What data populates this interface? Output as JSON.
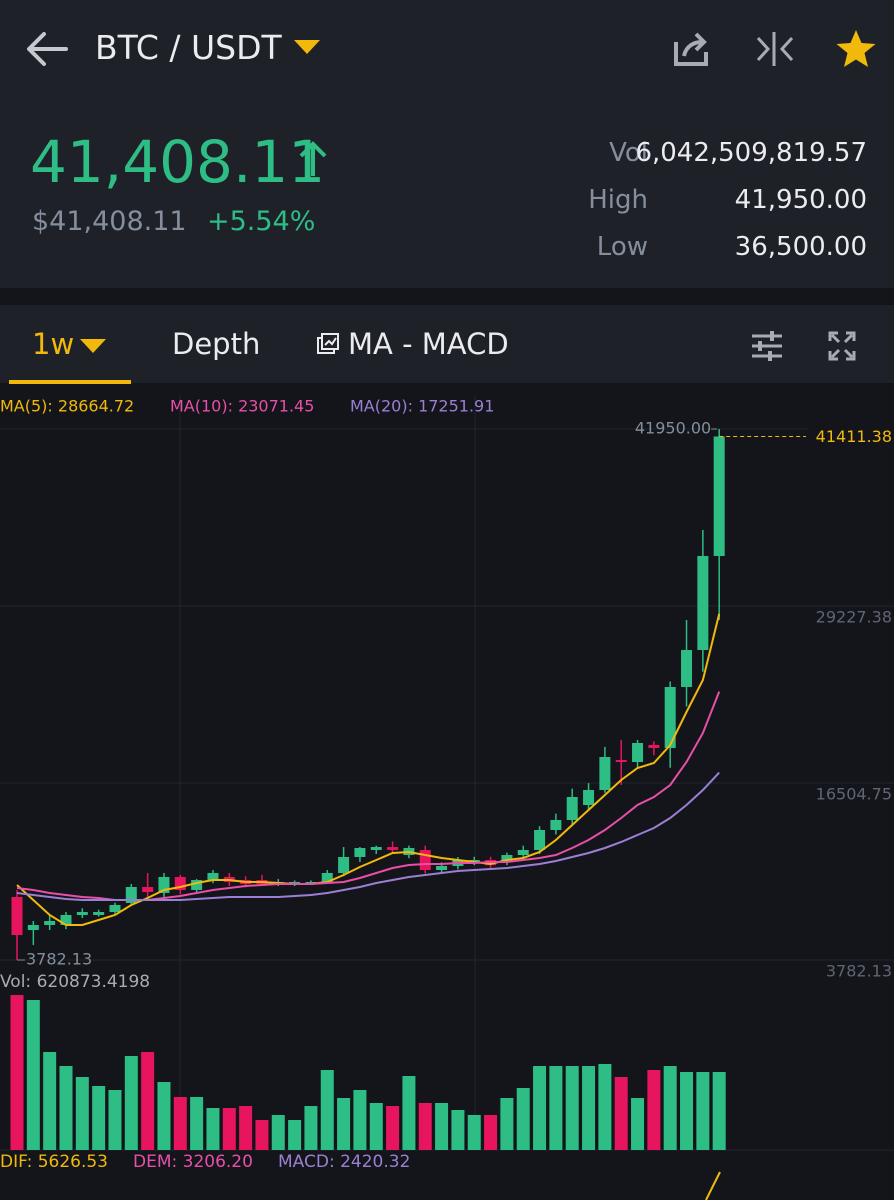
{
  "header": {
    "pair": "BTC / USDT",
    "price": "41,408.11",
    "fiat_price": "$41,408.11",
    "change": "+5.54%",
    "stats": [
      {
        "label": "Vol",
        "value": "6,042,509,819.57"
      },
      {
        "label": "High",
        "value": "41,950.00"
      },
      {
        "label": "Low",
        "value": "36,500.00"
      }
    ]
  },
  "tabs": [
    "1w",
    "Depth",
    "MA - MACD"
  ],
  "chart_data": {
    "type": "candlestick",
    "up_color": "#2ebd85",
    "down_color": "#e6155e",
    "open": [
      8310,
      5938,
      6298,
      6298,
      7017,
      7017,
      7232,
      7879,
      9029,
      8600,
      9748,
      8814,
      9532,
      9748,
      9532,
      9532,
      9245,
      9245,
      9300,
      9389,
      10036,
      11186,
      11689,
      11904,
      11329,
      11689,
      10251,
      10539,
      10826,
      10970,
      10826,
      11329,
      11689,
      13126,
      13845,
      14923,
      16002,
      18158,
      18014,
      19237,
      19021,
      23405,
      26065,
      32822
    ],
    "high": [
      8814,
      6585,
      7017,
      7232,
      7500,
      7400,
      7900,
      9245,
      10036,
      10036,
      9900,
      9600,
      10251,
      10036,
      9800,
      9900,
      9600,
      9500,
      9500,
      10251,
      11900,
      11904,
      12000,
      12300,
      12000,
      12000,
      10800,
      11186,
      11200,
      11200,
      11500,
      12000,
      13400,
      14300,
      16100,
      16500,
      19100,
      19596,
      19600,
      19500,
      23800,
      28221,
      34691,
      41950
    ],
    "low": [
      3782.13,
      4860,
      5938,
      6000,
      6800,
      6900,
      7100,
      7700,
      8239,
      8300,
      8500,
      8600,
      9300,
      9100,
      9000,
      9100,
      9100,
      9100,
      9200,
      9300,
      9800,
      10826,
      11400,
      11500,
      11100,
      10000,
      10000,
      10300,
      10600,
      10400,
      10600,
      11100,
      11400,
      12800,
      13400,
      14500,
      15800,
      16361,
      17600,
      18500,
      17600,
      22000,
      24500,
      28221
    ],
    "close": [
      5579,
      6298,
      6585,
      7017,
      7232,
      7232,
      7735,
      9029,
      8670,
      9748,
      8814,
      9532,
      10036,
      9389,
      9245,
      9245,
      9389,
      9389,
      9389,
      10036,
      11186,
      11833,
      11904,
      11689,
      11833,
      10251,
      10539,
      10970,
      10970,
      10600,
      11329,
      11689,
      13126,
      13845,
      15498,
      16002,
      18374,
      18014,
      19380,
      19021,
      23405,
      26065,
      32822,
      41411.38
    ],
    "series": [
      {
        "label": "MA(5): 28664.72",
        "color": "#f0b90b",
        "values": [
          9173,
          8095,
          7017,
          6298,
          6298,
          6657,
          7017,
          7735,
          8239,
          8814,
          9029,
          9317,
          9532,
          9532,
          9389,
          9389,
          9317,
          9245,
          9245,
          9389,
          9892,
          10467,
          10970,
          11473,
          11545,
          11329,
          11114,
          10970,
          10826,
          10682,
          10970,
          11114,
          11545,
          12408,
          13486,
          14564,
          15642,
          16720,
          17583,
          17942,
          19236,
          21608,
          23908,
          28664.72
        ]
      },
      {
        "label": "MA(10): 23071.45",
        "color": "#e84fa8",
        "values": [
          8957,
          8814,
          8598,
          8454,
          8310,
          8239,
          8095,
          8095,
          8095,
          8239,
          8382,
          8598,
          8814,
          8957,
          9101,
          9173,
          9245,
          9245,
          9245,
          9317,
          9389,
          9676,
          10036,
          10395,
          10611,
          10682,
          10682,
          10754,
          10754,
          10826,
          10826,
          10970,
          11114,
          11329,
          11833,
          12408,
          13126,
          13989,
          14923,
          15498,
          16361,
          18014,
          20099,
          23071.45
        ]
      },
      {
        "label": "MA(20): 17251.91",
        "color": "#9b7fd4",
        "values": [
          8598,
          8454,
          8310,
          8167,
          8095,
          8095,
          8095,
          8095,
          8095,
          8095,
          8095,
          8167,
          8239,
          8310,
          8310,
          8310,
          8310,
          8382,
          8454,
          8598,
          8814,
          9029,
          9317,
          9532,
          9748,
          9892,
          10036,
          10180,
          10251,
          10323,
          10395,
          10539,
          10682,
          10898,
          11185,
          11473,
          11833,
          12264,
          12767,
          13270,
          13989,
          14923,
          16002,
          17251.91
        ]
      }
    ],
    "ylim": [
      3207,
      45112
    ],
    "yticks": [
      3782.13,
      16504.75,
      29227.38,
      {
        "value": 41950,
        "label": "41950.00"
      }
    ],
    "last_price_color": "#f0b90b",
    "volume": {
      "label": "Vol: 620873.4198",
      "ylim": [
        0,
        620873.4198
      ],
      "values": [
        620873,
        600840,
        392549,
        336470,
        292409,
        256358,
        240336,
        376526,
        392549,
        272381,
        212297,
        212297,
        168235,
        168235,
        176246,
        120168,
        140196,
        120168,
        176246,
        320448,
        208291,
        240336,
        188263,
        176246,
        296414,
        188263,
        188263,
        160224,
        140196,
        140196,
        208291,
        248347,
        336470,
        336470,
        336470,
        336470,
        344482,
        292409,
        208291,
        320448,
        336470,
        312437,
        312437,
        312437
      ]
    },
    "macd_labels": [
      {
        "text": "DIF: 5626.53",
        "color": "#f0b90b"
      },
      {
        "text": "DEM: 3206.20",
        "color": "#e84fa8"
      },
      {
        "text": "MACD: 2420.32",
        "color": "#9b7fd4"
      }
    ]
  }
}
